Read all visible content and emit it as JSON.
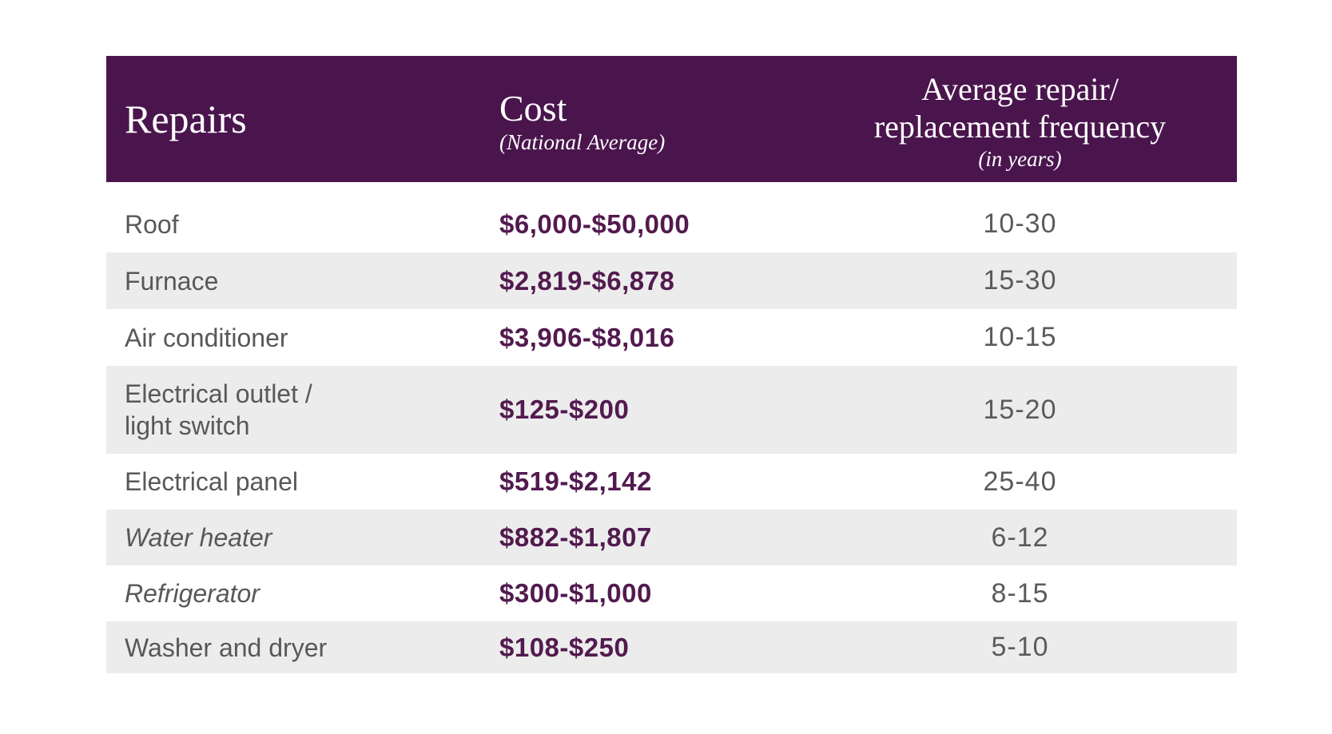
{
  "colors": {
    "header_bg": "#4a154d",
    "header_text": "#ffffff",
    "cost_text": "#521a4f",
    "label_text": "#58585b",
    "frequency_text": "#5b5b5d",
    "shaded_row_bg": "#ececec",
    "page_bg": "#ffffff"
  },
  "chart_data": {
    "type": "table",
    "columns": [
      {
        "label": "Repairs"
      },
      {
        "label": "Cost",
        "subtitle": "(National Average)"
      },
      {
        "label": "Average repair/ replacement frequency",
        "label_line1": "Average repair/",
        "label_line2": "replacement frequency",
        "subtitle": "(in years)"
      }
    ],
    "rows": [
      {
        "repair": "Roof",
        "cost": "$6,000-$50,000",
        "frequency_years": "10-30"
      },
      {
        "repair": "Furnace",
        "cost": "$2,819-$6,878",
        "frequency_years": "15-30"
      },
      {
        "repair": "Air conditioner",
        "cost": "$3,906-$8,016",
        "frequency_years": "10-15"
      },
      {
        "repair": "Electrical outlet / light switch",
        "repair_line1": "Electrical outlet /",
        "repair_line2": "light switch",
        "cost": "$125-$200",
        "frequency_years": "15-20"
      },
      {
        "repair": "Electrical panel",
        "cost": "$519-$2,142",
        "frequency_years": "25-40"
      },
      {
        "repair": "Water heater",
        "cost": "$882-$1,807",
        "frequency_years": "6-12"
      },
      {
        "repair": "Refrigerator",
        "cost": "$300-$1,000",
        "frequency_years": "8-15"
      },
      {
        "repair": "Washer and dryer",
        "cost": "$108-$250",
        "frequency_years": "5-10"
      }
    ]
  }
}
